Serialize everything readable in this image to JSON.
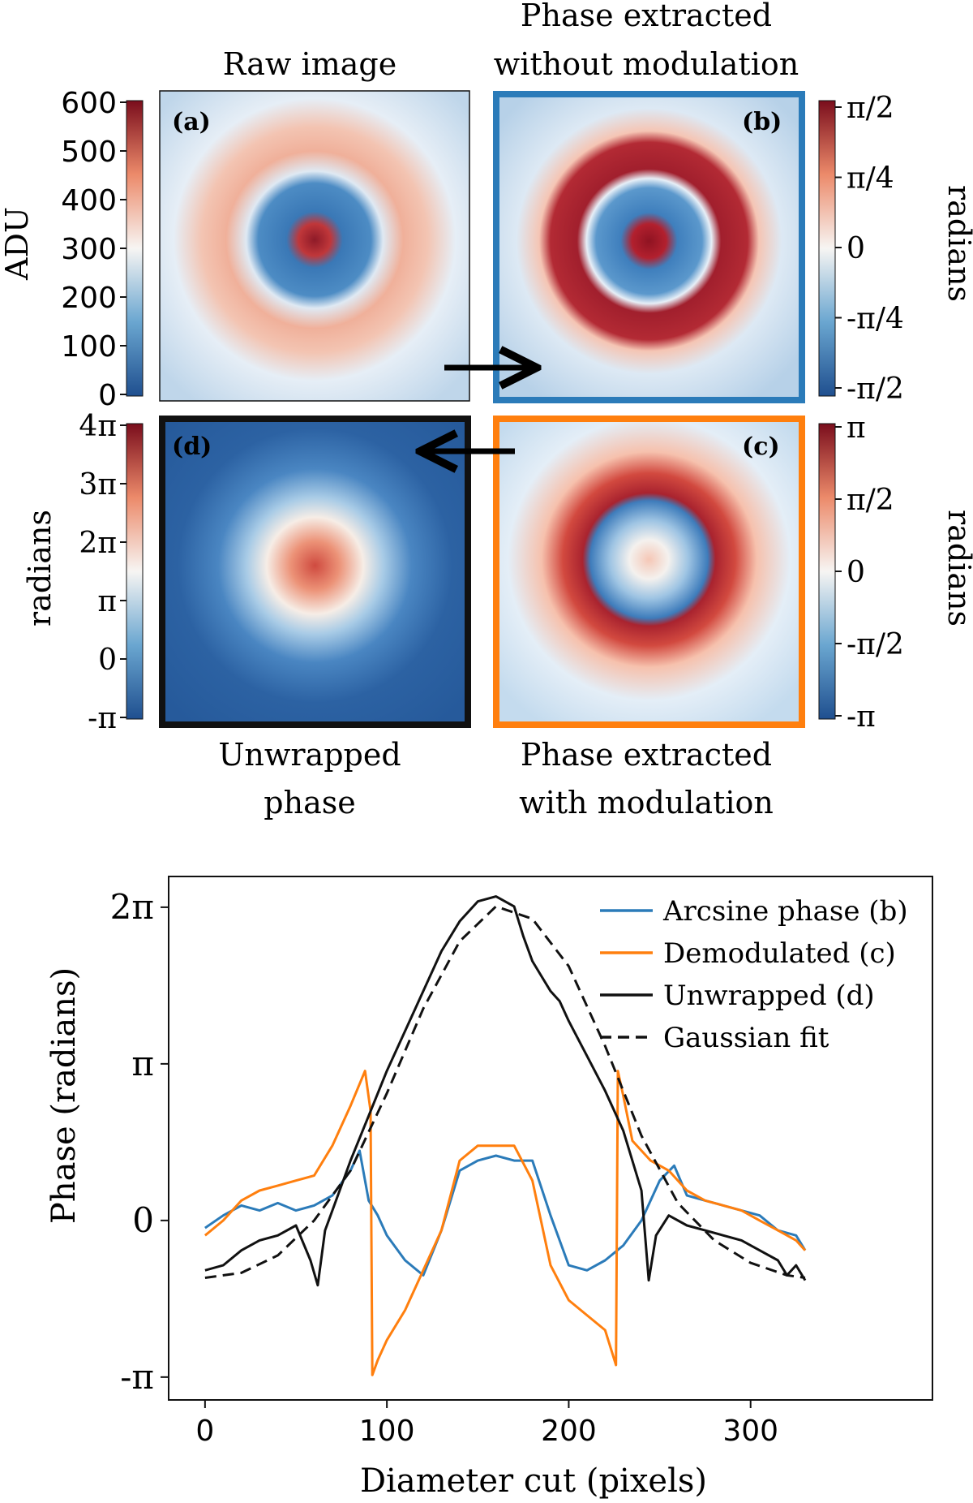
{
  "panels": {
    "a": {
      "tag": "(a)",
      "title": "Raw image"
    },
    "b": {
      "tag": "(b)",
      "title_line1": "Phase extracted",
      "title_line2": "without modulation"
    },
    "c": {
      "tag": "(c)",
      "title_line1": "Phase extracted",
      "title_line2": "with modulation"
    },
    "d": {
      "tag": "(d)",
      "title_line1": "Unwrapped",
      "title_line2": "phase"
    }
  },
  "colorbars": {
    "a": {
      "label": "ADU",
      "ticks": [
        "600",
        "500",
        "400",
        "300",
        "200",
        "100",
        "0"
      ]
    },
    "b": {
      "label": "radians",
      "ticks": [
        "π/2",
        "π/4",
        "0",
        "-π/4",
        "-π/2"
      ]
    },
    "c": {
      "label": "radians",
      "ticks": [
        "π",
        "π/2",
        "0",
        "-π/2",
        "-π"
      ]
    },
    "d": {
      "label": "radians",
      "ticks": [
        "4π",
        "3π",
        "2π",
        "π",
        "0",
        "-π"
      ]
    }
  },
  "colors": {
    "cmap_low": "#1f4f8f",
    "cmap_mid": "#f7f5f3",
    "cmap_high": "#7a0d1c",
    "border_b": "#2b7bb9",
    "border_c": "#ff7f0e",
    "border_d": "#111111",
    "arcsine": "#2b7bb9",
    "demod": "#ff7f0e",
    "unwrapped": "#111111"
  },
  "chart_data": {
    "type": "line",
    "xlabel": "Diameter cut (pixels)",
    "ylabel": "Phase (radians)",
    "xlim": [
      -20,
      400
    ],
    "ylim": [
      -3.6,
      6.9
    ],
    "xticks": [
      {
        "v": 0,
        "label": "0"
      },
      {
        "v": 100,
        "label": "100"
      },
      {
        "v": 200,
        "label": "200"
      },
      {
        "v": 300,
        "label": "300"
      }
    ],
    "yticks": [
      {
        "v": -3.1416,
        "label": "-π"
      },
      {
        "v": 0,
        "label": "0"
      },
      {
        "v": 3.1416,
        "label": "π"
      },
      {
        "v": 6.2832,
        "label": "2π"
      }
    ],
    "legend_position": "top-right",
    "series": [
      {
        "key": "arcsine",
        "name": "Arcsine phase (b)",
        "color": "#2b7bb9",
        "dash": false,
        "x": [
          0,
          10,
          20,
          30,
          40,
          50,
          60,
          70,
          80,
          85,
          90,
          95,
          100,
          110,
          120,
          130,
          140,
          150,
          160,
          170,
          180,
          190,
          200,
          210,
          220,
          230,
          240,
          250,
          258,
          265,
          275,
          285,
          295,
          305,
          315,
          325,
          330
        ],
        "y": [
          -0.15,
          0.1,
          0.3,
          0.2,
          0.35,
          0.2,
          0.3,
          0.5,
          1.0,
          1.4,
          0.4,
          0.1,
          -0.3,
          -0.8,
          -1.1,
          -0.2,
          1.0,
          1.2,
          1.3,
          1.2,
          1.2,
          0.1,
          -0.9,
          -1.0,
          -0.8,
          -0.5,
          0.0,
          0.8,
          1.1,
          0.5,
          0.4,
          0.3,
          0.2,
          0.1,
          -0.2,
          -0.3,
          -0.6
        ]
      },
      {
        "key": "demod",
        "name": "Demodulated (c)",
        "color": "#ff7f0e",
        "dash": false,
        "x": [
          0,
          10,
          20,
          30,
          40,
          50,
          60,
          70,
          80,
          88,
          91,
          92,
          95,
          100,
          110,
          120,
          130,
          140,
          150,
          160,
          170,
          180,
          190,
          200,
          210,
          220,
          226,
          227,
          230,
          235,
          245,
          255,
          265,
          275,
          285,
          295,
          305,
          315,
          325,
          330
        ],
        "y": [
          -0.3,
          0.0,
          0.4,
          0.6,
          0.7,
          0.8,
          0.9,
          1.5,
          2.3,
          3.0,
          2.2,
          -3.1,
          -2.8,
          -2.4,
          -1.8,
          -1.0,
          -0.2,
          1.2,
          1.5,
          1.5,
          1.5,
          0.8,
          -0.9,
          -1.6,
          -1.9,
          -2.2,
          -2.9,
          3.0,
          2.5,
          1.6,
          1.2,
          1.0,
          0.6,
          0.4,
          0.3,
          0.2,
          0.0,
          -0.2,
          -0.4,
          -0.6
        ]
      },
      {
        "key": "unwrapped",
        "name": "Unwrapped (d)",
        "color": "#111111",
        "dash": false,
        "x": [
          0,
          10,
          20,
          30,
          40,
          50,
          58,
          62,
          66,
          70,
          80,
          90,
          100,
          110,
          120,
          130,
          140,
          150,
          160,
          170,
          175,
          180,
          185,
          190,
          195,
          200,
          210,
          220,
          230,
          240,
          244,
          248,
          255,
          265,
          275,
          285,
          295,
          305,
          315,
          320,
          325,
          330
        ],
        "y": [
          -1.0,
          -0.9,
          -0.6,
          -0.4,
          -0.3,
          -0.1,
          -0.8,
          -1.3,
          -0.2,
          0.2,
          1.2,
          2.1,
          3.0,
          3.8,
          4.6,
          5.4,
          6.0,
          6.4,
          6.5,
          6.3,
          5.7,
          5.2,
          4.9,
          4.6,
          4.4,
          4.0,
          3.3,
          2.6,
          1.8,
          0.6,
          -1.2,
          -0.3,
          0.1,
          -0.1,
          -0.2,
          -0.3,
          -0.4,
          -0.6,
          -0.8,
          -1.1,
          -0.9,
          -1.2
        ]
      },
      {
        "key": "fit",
        "name": "Gaussian fit",
        "color": "#111111",
        "dash": true,
        "x": [
          0,
          20,
          40,
          60,
          80,
          100,
          120,
          140,
          160,
          180,
          200,
          220,
          240,
          260,
          280,
          300,
          320,
          330
        ],
        "y": [
          -1.15,
          -1.05,
          -0.7,
          0.0,
          1.0,
          2.55,
          4.25,
          5.6,
          6.3,
          6.05,
          5.1,
          3.5,
          1.7,
          0.35,
          -0.4,
          -0.85,
          -1.1,
          -1.15
        ]
      }
    ]
  }
}
